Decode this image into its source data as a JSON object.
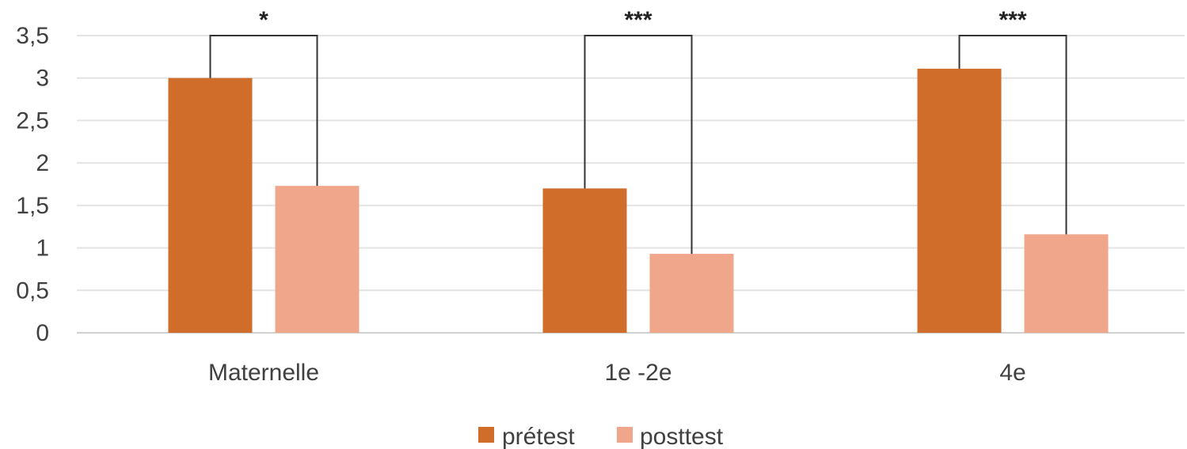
{
  "chart_data": {
    "type": "bar",
    "categories": [
      "Maternelle",
      "1e -2e",
      "4e"
    ],
    "series": [
      {
        "name": "prétest",
        "values": [
          3.0,
          1.7,
          3.11
        ],
        "color": "#D06D2B"
      },
      {
        "name": "posttest",
        "values": [
          1.73,
          0.93,
          1.16
        ],
        "color": "#F0A68B"
      }
    ],
    "ylim": [
      0,
      3.5
    ],
    "yticks": [
      "0",
      "0,5",
      "1",
      "1,5",
      "2",
      "2,5",
      "3",
      "3,5"
    ],
    "ytick_values": [
      0,
      0.5,
      1,
      1.5,
      2,
      2.5,
      3,
      3.5
    ],
    "grid": true,
    "legend_position": "bottom-center",
    "significance": [
      "*",
      "***",
      "***"
    ],
    "title": "",
    "xlabel": "",
    "ylabel": ""
  }
}
